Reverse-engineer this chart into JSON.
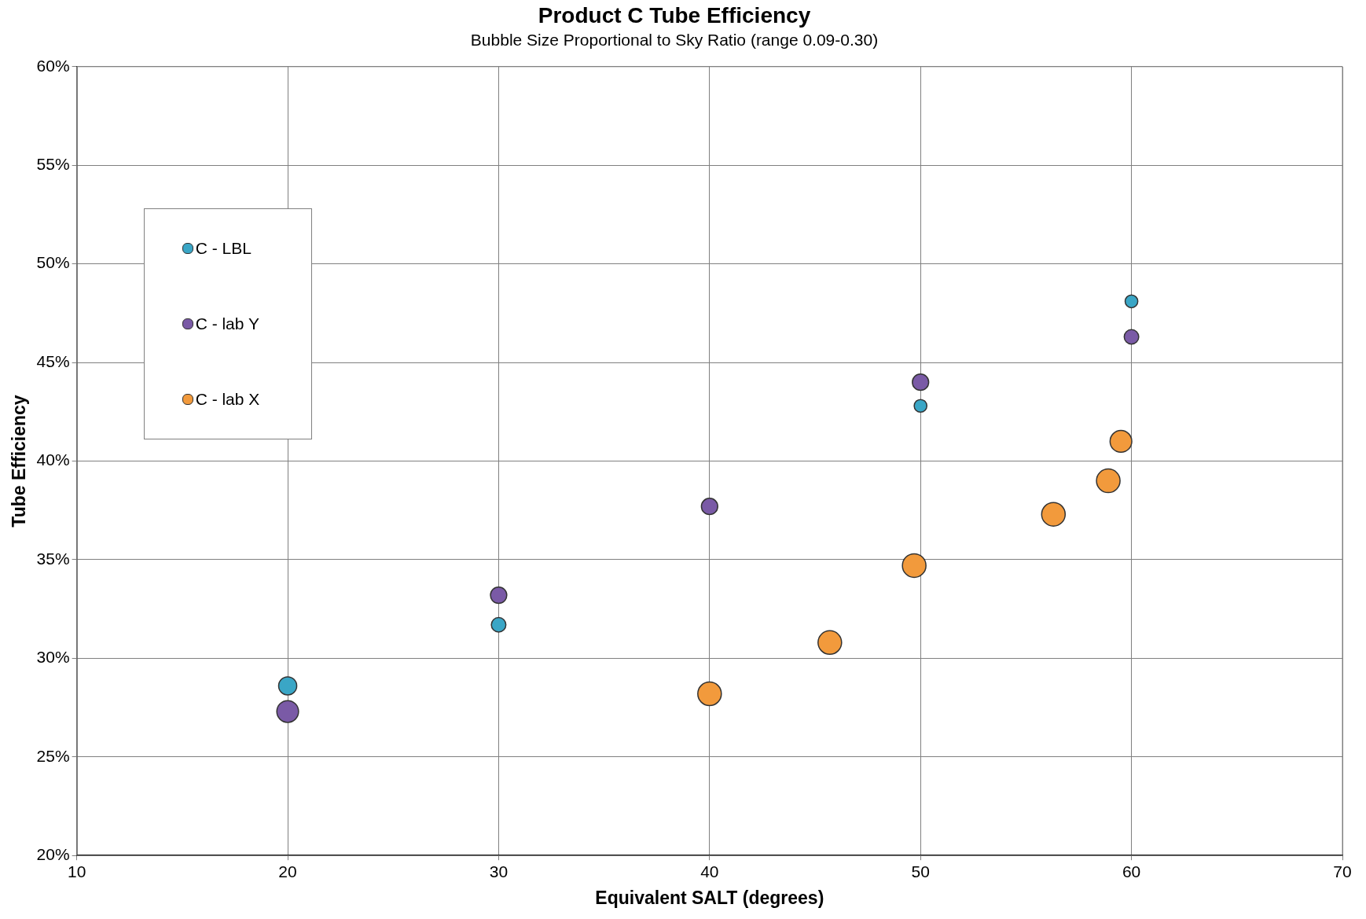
{
  "chart_data": {
    "type": "bubble",
    "title": "Product C Tube Efficiency",
    "subtitle": "Bubble Size Proportional to Sky Ratio (range 0.09-0.30)",
    "xlabel": "Equivalent SALT (degrees)",
    "ylabel": "Tube Efficiency",
    "series": [
      {
        "name": "C - LBL",
        "color": "#3aa6c6",
        "x": [
          20,
          30,
          50,
          60
        ],
        "values": [
          28.6,
          31.7,
          42.8,
          48.1
        ],
        "sizes": [
          0.59,
          0.38,
          0.29,
          0.29
        ]
      },
      {
        "name": "C - lab Y",
        "color": "#7a5aa6",
        "x": [
          20,
          30,
          40,
          50,
          60
        ],
        "values": [
          27.3,
          33.2,
          37.7,
          44.0,
          46.3
        ],
        "sizes": [
          0.85,
          0.48,
          0.48,
          0.48,
          0.38
        ]
      },
      {
        "name": "C - lab X",
        "color": "#f29a3c",
        "x": [
          40,
          45.7,
          49.7,
          56.3,
          58.9,
          59.5
        ],
        "values": [
          28.2,
          30.8,
          34.7,
          37.3,
          39.0,
          41.0
        ],
        "sizes": [
          1,
          1,
          1,
          1,
          1,
          0.85
        ]
      }
    ],
    "xlim": [
      10,
      70
    ],
    "xticks": [
      10,
      20,
      30,
      40,
      50,
      60,
      70
    ],
    "ylim": [
      20,
      60
    ],
    "yticks": [
      {
        "value": 20,
        "label": "20%"
      },
      {
        "value": 25,
        "label": "25%"
      },
      {
        "value": 30,
        "label": "30%"
      },
      {
        "value": 35,
        "label": "35%"
      },
      {
        "value": 40,
        "label": "40%"
      },
      {
        "value": 45,
        "label": "45%"
      },
      {
        "value": 50,
        "label": "50%"
      },
      {
        "value": 55,
        "label": "55%"
      },
      {
        "value": 60,
        "label": "60%"
      }
    ],
    "grid": true,
    "legend": "top left"
  }
}
